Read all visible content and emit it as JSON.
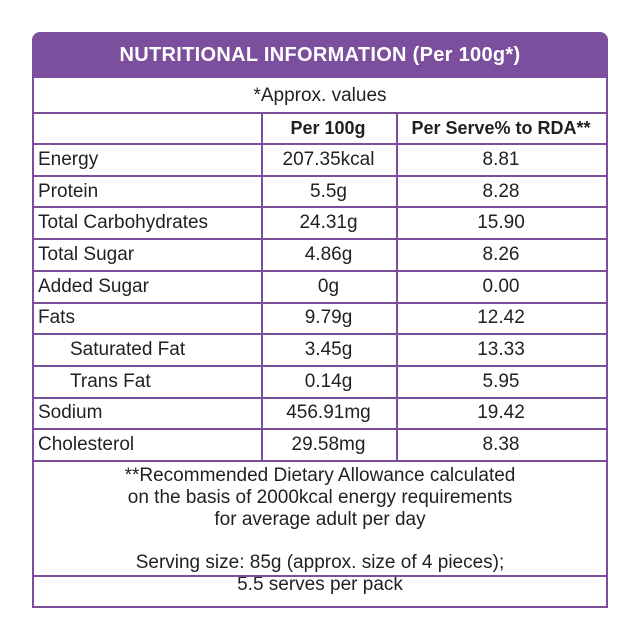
{
  "title": "NUTRITIONAL INFORMATION (Per 100g*)",
  "approx_note": "*Approx. values",
  "columns": {
    "per100": "Per 100g",
    "perserve": "Per Serve% to RDA**"
  },
  "rows": [
    {
      "name": "Energy",
      "per100": "207.35kcal",
      "rda": "8.81",
      "indent": false
    },
    {
      "name": "Protein",
      "per100": "5.5g",
      "rda": "8.28",
      "indent": false
    },
    {
      "name": "Total Carbohydrates",
      "per100": "24.31g",
      "rda": "15.90",
      "indent": false
    },
    {
      "name": "Total Sugar",
      "per100": "4.86g",
      "rda": "8.26",
      "indent": false
    },
    {
      "name": "Added Sugar",
      "per100": "0g",
      "rda": "0.00",
      "indent": false
    },
    {
      "name": "Fats",
      "per100": "9.79g",
      "rda": "12.42",
      "indent": false
    },
    {
      "name": "Saturated Fat",
      "per100": "3.45g",
      "rda": "13.33",
      "indent": true
    },
    {
      "name": "Trans Fat",
      "per100": "0.14g",
      "rda": "5.95",
      "indent": true
    },
    {
      "name": "Sodium",
      "per100": "456.91mg",
      "rda": "19.42",
      "indent": false
    },
    {
      "name": "Cholesterol",
      "per100": "29.58mg",
      "rda": "8.38",
      "indent": false
    }
  ],
  "rda_note": [
    "**Recommended Dietary Allowance calculated",
    "on the basis of 2000kcal energy requirements",
    "for average adult per day"
  ],
  "serving_note": [
    "Serving size: 85g (approx. size of 4 pieces);",
    "5.5 serves per pack"
  ],
  "colors": {
    "accent": "#7b4f9e",
    "text": "#231f20"
  }
}
